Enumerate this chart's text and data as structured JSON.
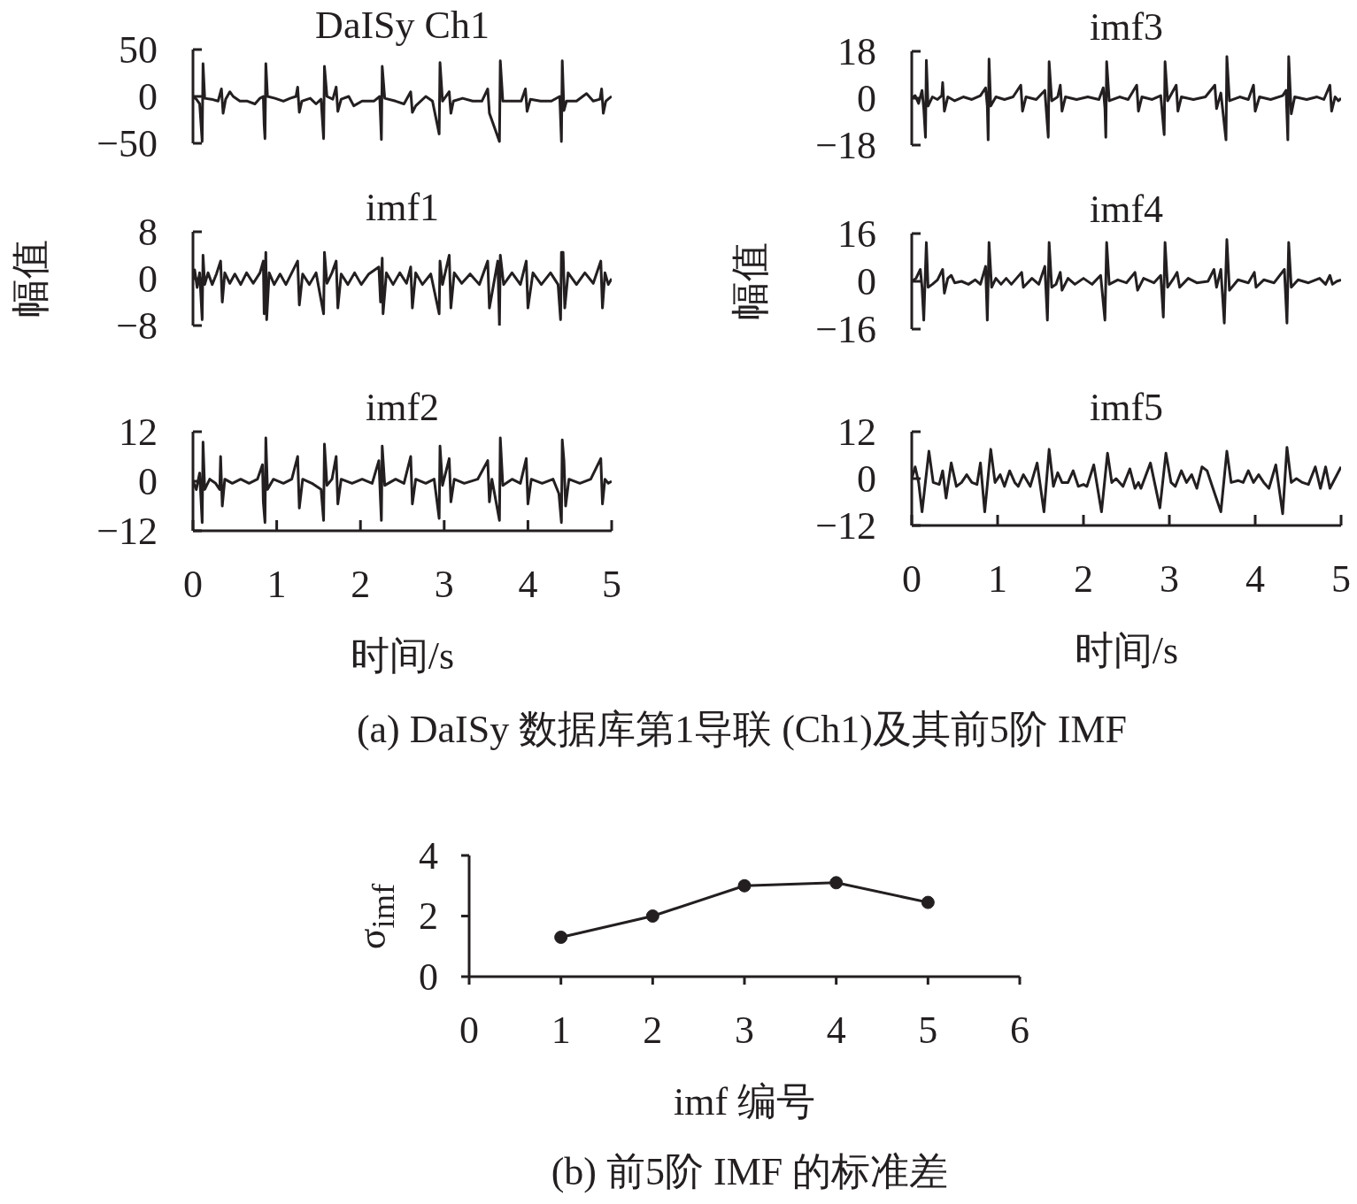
{
  "chart_data": [
    {
      "type": "line",
      "title": "DaISy Ch1",
      "x": [
        0,
        0.04,
        0.08,
        0.11,
        0.12,
        0.14,
        0.22,
        0.3,
        0.34,
        0.36,
        0.39,
        0.44,
        0.48,
        0.56,
        0.65,
        0.74,
        0.8,
        0.84,
        0.85,
        0.86,
        0.87,
        0.89,
        0.98,
        1.08,
        1.16,
        1.23,
        1.25,
        1.27,
        1.3,
        1.4,
        1.47,
        1.53,
        1.56,
        1.57,
        1.6,
        1.67,
        1.71,
        1.73,
        1.77,
        1.86,
        1.92,
        2.02,
        2.16,
        2.23,
        2.25,
        2.26,
        2.29,
        2.42,
        2.52,
        2.6,
        2.62,
        2.66,
        2.78,
        2.86,
        2.94,
        2.95,
        2.98,
        3.06,
        3.08,
        3.11,
        3.22,
        3.34,
        3.45,
        3.52,
        3.54,
        3.66,
        3.67,
        3.7,
        3.8,
        3.92,
        3.97,
        3.99,
        4.03,
        4.15,
        4.28,
        4.38,
        4.4,
        4.41,
        4.43,
        4.46,
        4.58,
        4.7,
        4.78,
        4.86,
        4.88,
        4.9,
        4.93,
        4.97,
        5.0
      ],
      "series": [
        {
          "color": "#231f20",
          "values": [
            0,
            -3,
            -8,
            -48,
            35,
            -2,
            -3,
            -5,
            8,
            -18,
            -3,
            5,
            0,
            -5,
            -5,
            -8,
            -2,
            0,
            -30,
            -45,
            35,
            0,
            -2,
            -5,
            -2,
            0,
            10,
            -17,
            -5,
            -2,
            -8,
            -3,
            -45,
            32,
            0,
            -3,
            10,
            -16,
            -3,
            0,
            -10,
            -5,
            -5,
            0,
            -46,
            32,
            -2,
            -5,
            -8,
            5,
            -17,
            -10,
            0,
            -5,
            -40,
            36,
            -5,
            5,
            -18,
            -5,
            -2,
            -5,
            -5,
            8,
            -18,
            -48,
            38,
            -5,
            -5,
            -5,
            8,
            -16,
            -3,
            -5,
            -5,
            0,
            -48,
            38,
            -15,
            -5,
            -5,
            3,
            -5,
            -3,
            8,
            -18,
            -5,
            -2,
            0
          ]
        }
      ],
      "xlim": [
        0,
        5
      ],
      "ylim": [
        -50,
        50
      ],
      "yticks": [
        {
          "value": -50,
          "label": "−50"
        },
        0,
        50
      ],
      "tick_labels": "y",
      "line_style": "solid"
    },
    {
      "type": "line",
      "title": "imf3",
      "x": [
        0,
        0.04,
        0.08,
        0.12,
        0.14,
        0.16,
        0.17,
        0.19,
        0.24,
        0.3,
        0.35,
        0.36,
        0.38,
        0.42,
        0.5,
        0.6,
        0.7,
        0.8,
        0.86,
        0.88,
        0.89,
        0.9,
        0.92,
        0.98,
        1.08,
        1.18,
        1.27,
        1.29,
        1.33,
        1.45,
        1.55,
        1.59,
        1.6,
        1.63,
        1.7,
        1.73,
        1.75,
        1.79,
        1.92,
        2.05,
        2.18,
        2.23,
        2.25,
        2.26,
        2.27,
        2.3,
        2.42,
        2.52,
        2.62,
        2.64,
        2.68,
        2.8,
        2.9,
        2.94,
        2.95,
        2.98,
        3.08,
        3.1,
        3.14,
        3.28,
        3.42,
        3.53,
        3.55,
        3.6,
        3.66,
        3.67,
        3.7,
        3.82,
        3.92,
        3.98,
        4.0,
        4.05,
        4.18,
        4.32,
        4.36,
        4.38,
        4.39,
        4.42,
        4.46,
        4.6,
        4.72,
        4.8,
        4.87,
        4.89,
        4.93,
        4.97,
        5.0
      ],
      "series": [
        {
          "color": "#231f20",
          "values": [
            0,
            1,
            -2,
            3,
            -4,
            -15,
            14.5,
            -3,
            0.5,
            -0.5,
            1,
            6,
            -5,
            0.5,
            -1,
            0.5,
            -0.5,
            1,
            4,
            -3,
            -16,
            15,
            -3,
            0.5,
            -0.5,
            0.5,
            5,
            -5,
            0.5,
            -0.5,
            3,
            -15,
            14,
            -1,
            0.5,
            5,
            -5,
            0.5,
            -0.5,
            0.5,
            -0.5,
            4,
            -4,
            -15,
            14,
            -1,
            0.5,
            -0.5,
            5,
            -5,
            0.5,
            -0.5,
            1,
            -14,
            14,
            -1,
            5,
            -5,
            0.5,
            -0.5,
            0.5,
            5,
            -4,
            2,
            -16,
            16,
            -1,
            0.5,
            -0.5,
            5,
            -5,
            0.5,
            -0.5,
            1,
            3,
            -16,
            16,
            -6,
            0.5,
            -0.5,
            0.5,
            -0.5,
            5,
            -5,
            0.5,
            -1,
            0
          ]
        }
      ],
      "xlim": [
        0,
        5
      ],
      "ylim": [
        -18,
        18
      ],
      "yticks": [
        {
          "value": -18,
          "label": "−18"
        },
        0,
        18
      ],
      "tick_labels": "y",
      "line_style": "solid"
    },
    {
      "type": "line",
      "title": "imf1",
      "ylabel": "幅值",
      "x": [
        0,
        0.02,
        0.05,
        0.08,
        0.11,
        0.12,
        0.14,
        0.18,
        0.23,
        0.28,
        0.33,
        0.35,
        0.38,
        0.44,
        0.5,
        0.57,
        0.64,
        0.72,
        0.8,
        0.84,
        0.85,
        0.87,
        0.88,
        0.91,
        0.97,
        1.04,
        1.11,
        1.18,
        1.25,
        1.27,
        1.31,
        1.39,
        1.47,
        1.56,
        1.57,
        1.6,
        1.66,
        1.71,
        1.73,
        1.77,
        1.85,
        1.93,
        2.01,
        2.1,
        2.22,
        2.24,
        2.26,
        2.27,
        2.31,
        2.39,
        2.47,
        2.55,
        2.6,
        2.62,
        2.66,
        2.74,
        2.84,
        2.94,
        2.95,
        2.98,
        3.06,
        3.08,
        3.12,
        3.21,
        3.31,
        3.42,
        3.52,
        3.54,
        3.64,
        3.66,
        3.67,
        3.71,
        3.81,
        3.91,
        3.98,
        4.0,
        4.06,
        4.16,
        4.27,
        4.36,
        4.39,
        4.4,
        4.42,
        4.44,
        4.48,
        4.58,
        4.68,
        4.78,
        4.87,
        4.89,
        4.92,
        4.96,
        5.0
      ],
      "series": [
        {
          "color": "#231f20",
          "values": [
            0,
            1.5,
            -1.5,
            1,
            -7,
            4,
            -1,
            1,
            -1,
            0.8,
            3,
            -4,
            1,
            -0.8,
            0.8,
            -1,
            1,
            -0.8,
            1,
            3,
            -6,
            4.5,
            -7,
            1,
            -1,
            0.8,
            -1,
            1,
            3,
            -4.5,
            0.8,
            -1,
            1,
            -6,
            4.5,
            -0.8,
            1,
            3,
            -5,
            0.8,
            -1,
            1,
            -1,
            0.8,
            2,
            -4,
            3.5,
            -6,
            1,
            -1,
            1,
            -0.8,
            2,
            -5,
            1,
            -1,
            0.8,
            -6,
            3,
            -1,
            4,
            -5,
            1,
            -0.8,
            0.8,
            -1,
            3,
            -5,
            3,
            -8,
            4,
            -1,
            1,
            -1,
            3,
            -5,
            1,
            -1,
            1,
            -1,
            -7,
            4.5,
            4.5,
            -5,
            1,
            -1,
            1,
            -0.8,
            3,
            -5,
            1,
            -1,
            0
          ]
        }
      ],
      "xlim": [
        0,
        5
      ],
      "ylim": [
        -8,
        8
      ],
      "yticks": [
        {
          "value": -8,
          "label": "−8"
        },
        0,
        8
      ],
      "tick_labels": "y",
      "line_style": "solid"
    },
    {
      "type": "line",
      "title": "imf4",
      "ylabel": "幅值",
      "x": [
        0,
        0.05,
        0.1,
        0.12,
        0.14,
        0.17,
        0.19,
        0.24,
        0.3,
        0.36,
        0.38,
        0.42,
        0.46,
        0.5,
        0.58,
        0.66,
        0.74,
        0.8,
        0.86,
        0.88,
        0.9,
        0.93,
        0.98,
        1.04,
        1.1,
        1.16,
        1.22,
        1.28,
        1.3,
        1.4,
        1.48,
        1.55,
        1.58,
        1.6,
        1.63,
        1.68,
        1.73,
        1.75,
        1.82,
        1.9,
        2.0,
        2.1,
        2.2,
        2.25,
        2.27,
        2.3,
        2.4,
        2.5,
        2.6,
        2.63,
        2.7,
        2.82,
        2.9,
        2.93,
        2.95,
        2.98,
        3.05,
        3.09,
        3.12,
        3.22,
        3.32,
        3.45,
        3.52,
        3.55,
        3.6,
        3.64,
        3.67,
        3.7,
        3.8,
        3.92,
        3.99,
        4.01,
        4.1,
        4.22,
        4.34,
        4.37,
        4.39,
        4.42,
        4.5,
        4.62,
        4.75,
        4.82,
        4.87,
        4.9,
        4.95,
        5.0
      ],
      "series": [
        {
          "color": "#231f20",
          "values": [
            0,
            1,
            4,
            -2,
            -13,
            13,
            -2,
            -1,
            0.5,
            4,
            -4,
            1,
            2,
            -0.5,
            0,
            -1,
            0.5,
            -1,
            5,
            -13,
            13,
            -2,
            1,
            -1,
            1,
            -1,
            1,
            3,
            -2,
            1,
            -1,
            5,
            -13,
            13,
            -2,
            -1,
            3,
            -3,
            1,
            -1,
            1,
            -1,
            2,
            -13,
            13,
            -1,
            0.5,
            -0.5,
            3,
            -3,
            1,
            -0.5,
            2,
            -12,
            13,
            -2,
            1,
            3,
            -2,
            1,
            -0.5,
            0,
            4,
            -2,
            4,
            -14,
            14,
            -3,
            0.5,
            -0.5,
            3,
            -2,
            0.5,
            -0.5,
            4,
            -14,
            13,
            -2,
            0.5,
            -0.5,
            1,
            -1,
            2,
            -1,
            0,
            0.5
          ]
        }
      ],
      "xlim": [
        0,
        5
      ],
      "ylim": [
        -16,
        16
      ],
      "yticks": [
        {
          "value": -16,
          "label": "−16"
        },
        0,
        16
      ],
      "tick_labels": "y",
      "line_style": "solid"
    },
    {
      "type": "line",
      "title": "imf2",
      "xlabel": "时间/s",
      "annotations": [
        "(a) DaISy 数据库第1导联 (Ch1)及其前5阶 IMF"
      ],
      "x": [
        0,
        0.04,
        0.08,
        0.11,
        0.12,
        0.14,
        0.2,
        0.27,
        0.32,
        0.33,
        0.35,
        0.38,
        0.47,
        0.57,
        0.67,
        0.77,
        0.83,
        0.84,
        0.86,
        0.87,
        0.89,
        0.96,
        1.08,
        1.18,
        1.25,
        1.27,
        1.31,
        1.42,
        1.53,
        1.56,
        1.57,
        1.6,
        1.66,
        1.71,
        1.73,
        1.77,
        1.9,
        2.02,
        2.14,
        2.22,
        2.24,
        2.25,
        2.26,
        2.29,
        2.42,
        2.52,
        2.6,
        2.62,
        2.66,
        2.78,
        2.88,
        2.94,
        2.95,
        2.98,
        3.06,
        3.08,
        3.12,
        3.24,
        3.4,
        3.52,
        3.54,
        3.57,
        3.66,
        3.67,
        3.7,
        3.81,
        3.91,
        3.98,
        4.0,
        4.04,
        4.17,
        4.3,
        4.37,
        4.4,
        4.41,
        4.43,
        4.45,
        4.49,
        4.62,
        4.75,
        4.87,
        4.89,
        4.92,
        4.96,
        5.0
      ],
      "series": [
        {
          "color": "#231f20",
          "values": [
            0,
            -2,
            2,
            -10,
            9.5,
            -2,
            0.5,
            -0.5,
            -2,
            6,
            -6,
            0.5,
            -0.5,
            0.5,
            -0.5,
            0.5,
            4,
            -5,
            -10,
            10.5,
            -2,
            0.5,
            -0.5,
            0.5,
            6,
            -6.5,
            0.5,
            -0.5,
            -2,
            -9.5,
            9,
            -1,
            0.5,
            6,
            -5.5,
            0.5,
            -0.5,
            0.5,
            -0.5,
            5,
            -5,
            -9.5,
            8.5,
            -1,
            0.5,
            -0.5,
            6,
            -5.5,
            0.5,
            -0.5,
            0.5,
            -9,
            8.5,
            -1,
            5.5,
            -5,
            0.5,
            -0.5,
            0.5,
            5,
            -5,
            0.5,
            -9.5,
            10.5,
            -1,
            0.5,
            -0.5,
            5.5,
            -5.5,
            0.5,
            -0.5,
            0.5,
            -3,
            -10,
            10,
            5,
            -6,
            0.5,
            -0.5,
            0.5,
            5.5,
            -5.5,
            0.5,
            -0.5,
            0
          ]
        }
      ],
      "xlim": [
        0,
        5
      ],
      "xticks": [
        0,
        1,
        2,
        3,
        4,
        5
      ],
      "ylim": [
        -12,
        12
      ],
      "yticks": [
        {
          "value": -12,
          "label": "−12"
        },
        0,
        12
      ],
      "line_style": "solid"
    },
    {
      "type": "line",
      "title": "imf5",
      "xlabel": "时间/s",
      "x": [
        0,
        0.04,
        0.08,
        0.12,
        0.2,
        0.25,
        0.32,
        0.36,
        0.4,
        0.46,
        0.52,
        0.58,
        0.64,
        0.7,
        0.76,
        0.8,
        0.85,
        0.92,
        0.97,
        1.03,
        1.08,
        1.14,
        1.2,
        1.24,
        1.3,
        1.38,
        1.46,
        1.54,
        1.6,
        1.65,
        1.7,
        1.75,
        1.82,
        1.88,
        1.94,
        2.0,
        2.04,
        2.12,
        2.21,
        2.28,
        2.33,
        2.38,
        2.46,
        2.54,
        2.6,
        2.64,
        2.67,
        2.78,
        2.89,
        2.96,
        3.02,
        3.07,
        3.14,
        3.2,
        3.26,
        3.32,
        3.38,
        3.44,
        3.5,
        3.6,
        3.67,
        3.72,
        3.8,
        3.86,
        3.92,
        3.98,
        4.04,
        4.1,
        4.16,
        4.24,
        4.32,
        4.37,
        4.42,
        4.48,
        4.55,
        4.62,
        4.7,
        4.76,
        4.82,
        4.87,
        5.0
      ],
      "series": [
        {
          "color": "#231f20",
          "values": [
            0,
            3,
            -1,
            -8.5,
            7,
            -1,
            -1.5,
            2,
            -5,
            4,
            -2,
            -1,
            1,
            -1,
            -1.5,
            4,
            -8.5,
            7.5,
            -1,
            1,
            -2,
            2,
            -1,
            -2,
            1,
            -2,
            4,
            -8.5,
            7.5,
            -2,
            1.5,
            -1,
            -1,
            2,
            -2,
            -1.5,
            -2,
            3.5,
            -8.5,
            6.5,
            -1,
            0,
            -2,
            2.5,
            -2.5,
            -1,
            -2.5,
            4,
            -7.5,
            6.5,
            -1,
            -2,
            2,
            -1,
            1,
            -2.5,
            3,
            2,
            -2,
            -8.5,
            7,
            -1,
            -0.5,
            -1,
            2,
            -1,
            1,
            -1,
            -2.5,
            3.5,
            -9,
            8,
            -1,
            0,
            -1,
            -1.5,
            3,
            -2.5,
            3,
            -2.5,
            3
          ]
        }
      ],
      "xlim": [
        0,
        5
      ],
      "xticks": [
        0,
        1,
        2,
        3,
        4,
        5
      ],
      "ylim": [
        -12,
        12
      ],
      "yticks": [
        {
          "value": -12,
          "label": "−12"
        },
        0,
        12
      ],
      "line_style": "solid"
    },
    {
      "type": "line",
      "xlabel": "imf  编号",
      "ylabel": "σ$_{imf}$",
      "annotations": [
        "(b) 前5阶 IMF 的标准差"
      ],
      "x": [
        1,
        2,
        3,
        4,
        5
      ],
      "series": [
        {
          "color": "#231f20",
          "values": [
            1.3,
            2.0,
            3.0,
            3.1,
            2.45
          ]
        }
      ],
      "xlim": [
        0,
        6
      ],
      "xticks": [
        0,
        1,
        2,
        3,
        4,
        5,
        6
      ],
      "ylim": [
        0,
        4
      ],
      "yticks": [
        0,
        2,
        4
      ],
      "marker": "circle",
      "line_style": "solid"
    }
  ]
}
